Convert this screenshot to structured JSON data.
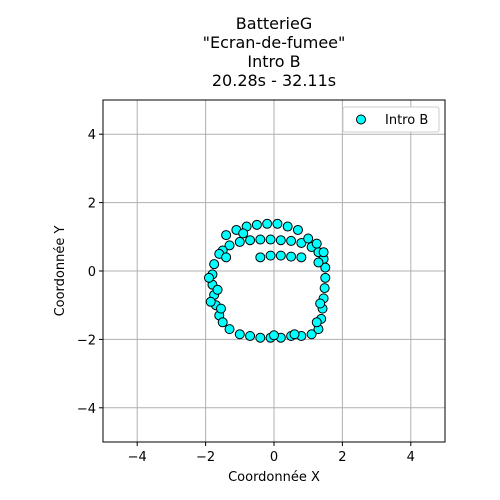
{
  "chart_data": {
    "type": "scatter",
    "title_lines": [
      "BatterieG",
      "\"Ecran-de-fumee\"",
      "Intro B",
      "20.28s - 32.11s"
    ],
    "xlabel": "Coordonnée X",
    "ylabel": "Coordonnée Y",
    "xlim": [
      -5,
      5
    ],
    "ylim": [
      -5,
      5
    ],
    "xticks": [
      -4,
      -2,
      0,
      2,
      4
    ],
    "yticks": [
      -4,
      -2,
      0,
      2,
      4
    ],
    "xtick_labels": [
      "−4",
      "−2",
      "0",
      "2",
      "4"
    ],
    "ytick_labels": [
      "−4",
      "−2",
      "0",
      "2",
      "4"
    ],
    "grid": true,
    "legend_position": "top-right",
    "marker_color": "#00ffff",
    "marker_edge": "#000000",
    "series": [
      {
        "name": "Intro B",
        "points": [
          [
            -0.4,
            0.4
          ],
          [
            -0.1,
            0.45
          ],
          [
            0.2,
            0.45
          ],
          [
            0.5,
            0.42
          ],
          [
            0.8,
            0.4
          ],
          [
            -0.7,
            0.9
          ],
          [
            -0.4,
            0.92
          ],
          [
            -0.1,
            0.92
          ],
          [
            0.2,
            0.9
          ],
          [
            0.5,
            0.88
          ],
          [
            0.8,
            0.82
          ],
          [
            1.1,
            0.7
          ],
          [
            1.3,
            0.55
          ],
          [
            1.45,
            0.35
          ],
          [
            -1.0,
            0.85
          ],
          [
            -1.3,
            0.75
          ],
          [
            -1.5,
            0.6
          ],
          [
            -1.1,
            1.2
          ],
          [
            -0.8,
            1.3
          ],
          [
            -0.5,
            1.35
          ],
          [
            -0.2,
            1.38
          ],
          [
            0.1,
            1.38
          ],
          [
            0.4,
            1.3
          ],
          [
            0.7,
            1.2
          ],
          [
            1.0,
            0.95
          ],
          [
            1.25,
            0.8
          ],
          [
            1.45,
            0.55
          ],
          [
            -1.4,
            1.05
          ],
          [
            -1.6,
            0.5
          ],
          [
            -1.75,
            0.2
          ],
          [
            -1.8,
            -0.1
          ],
          [
            -1.8,
            -0.4
          ],
          [
            -1.75,
            -0.7
          ],
          [
            -1.7,
            -1.0
          ],
          [
            -1.6,
            -1.3
          ],
          [
            -1.5,
            -1.5
          ],
          [
            -1.3,
            -1.7
          ],
          [
            -1.0,
            -1.85
          ],
          [
            -0.7,
            -1.9
          ],
          [
            -0.4,
            -1.95
          ],
          [
            -0.1,
            -1.95
          ],
          [
            0.2,
            -1.95
          ],
          [
            0.5,
            -1.9
          ],
          [
            0.8,
            -1.9
          ],
          [
            1.1,
            -1.85
          ],
          [
            1.3,
            -1.7
          ],
          [
            1.38,
            -1.4
          ],
          [
            1.42,
            -1.1
          ],
          [
            1.45,
            -0.8
          ],
          [
            1.48,
            -0.5
          ],
          [
            1.5,
            -0.2
          ],
          [
            1.5,
            0.1
          ],
          [
            -1.9,
            -0.2
          ],
          [
            -1.85,
            -0.9
          ],
          [
            -1.55,
            -1.1
          ],
          [
            1.25,
            -1.5
          ],
          [
            1.35,
            -0.95
          ],
          [
            1.3,
            0.25
          ],
          [
            -1.4,
            0.4
          ],
          [
            -1.65,
            -0.55
          ],
          [
            0.0,
            -1.88
          ],
          [
            0.6,
            -1.85
          ],
          [
            -0.9,
            1.1
          ]
        ]
      }
    ]
  }
}
